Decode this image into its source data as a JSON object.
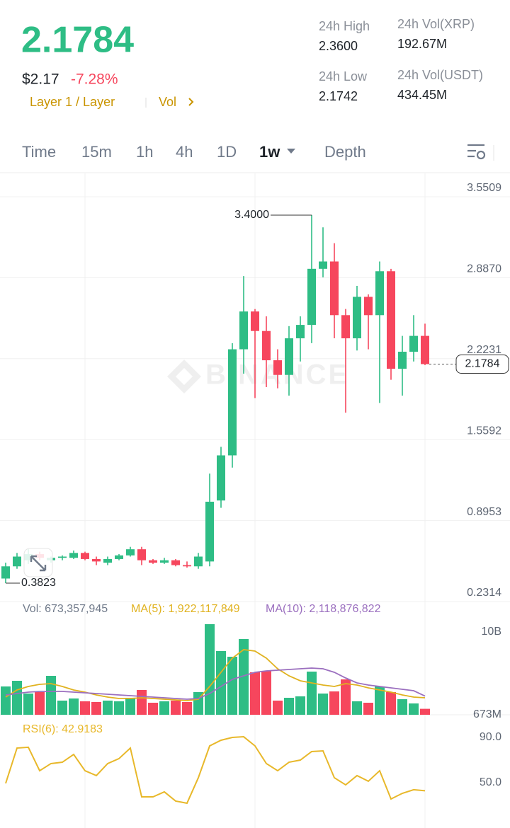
{
  "header": {
    "price": "2.1784",
    "fiat": "$2.17",
    "change": "-7.28%",
    "tags": [
      "Layer 1 / Layer",
      "Vol"
    ],
    "stats": [
      {
        "label": "24h High",
        "value": "2.3600"
      },
      {
        "label": "24h Vol(XRP)",
        "value": "192.67M"
      },
      {
        "label": "24h Low",
        "value": "2.1742"
      },
      {
        "label": "24h Vol(USDT)",
        "value": "434.45M"
      }
    ]
  },
  "tabs": {
    "items": [
      "Time",
      "15m",
      "1h",
      "4h",
      "1D",
      "1w",
      "Depth"
    ],
    "active": 5
  },
  "watermark": "BINANCE",
  "chart_data": [
    {
      "type": "candlestick",
      "up_color": "#2ebd85",
      "down_color": "#f6465d",
      "open": [
        0.42,
        0.52,
        0.57,
        0.62,
        0.57,
        0.59,
        0.59,
        0.63,
        0.58,
        0.55,
        0.58,
        0.61,
        0.66,
        0.57,
        0.55,
        0.57,
        0.53,
        0.52,
        0.56,
        1.06,
        1.43,
        2.3,
        2.61,
        2.45,
        2.21,
        2.09,
        2.39,
        2.5,
        2.96,
        3.02,
        2.58,
        2.39,
        2.73,
        2.58,
        2.94,
        2.14,
        2.28,
        2.41
      ],
      "high": [
        0.55,
        0.63,
        0.66,
        0.64,
        0.6,
        0.61,
        0.65,
        0.64,
        0.6,
        0.6,
        0.62,
        0.68,
        0.68,
        0.58,
        0.59,
        0.58,
        0.56,
        0.63,
        1.28,
        1.5,
        2.35,
        2.9,
        2.63,
        2.57,
        2.3,
        2.49,
        2.57,
        3.4,
        3.3,
        3.17,
        2.63,
        2.82,
        2.75,
        3.02,
        2.96,
        2.41,
        2.58,
        2.51
      ],
      "low": [
        0.3823,
        0.5,
        0.54,
        0.57,
        0.55,
        0.57,
        0.58,
        0.57,
        0.53,
        0.53,
        0.57,
        0.6,
        0.53,
        0.54,
        0.54,
        0.52,
        0.51,
        0.5,
        0.52,
        1.0,
        1.33,
        2.1,
        1.9,
        1.99,
        1.98,
        1.92,
        2.2,
        2.35,
        2.89,
        2.39,
        1.78,
        2.29,
        2.3,
        1.86,
        2.05,
        1.92,
        2.2,
        2.17
      ],
      "close": [
        0.52,
        0.6,
        0.62,
        0.59,
        0.59,
        0.6,
        0.63,
        0.58,
        0.56,
        0.58,
        0.61,
        0.66,
        0.57,
        0.55,
        0.57,
        0.53,
        0.52,
        0.6,
        1.05,
        1.43,
        2.3,
        2.61,
        2.45,
        2.21,
        2.09,
        2.39,
        2.5,
        2.96,
        3.02,
        2.58,
        2.39,
        2.73,
        2.58,
        2.94,
        2.14,
        2.28,
        2.41,
        2.1784
      ],
      "ylim": [
        0.2314,
        3.7134
      ],
      "yticks": [
        0.2314,
        0.8953,
        1.5592,
        2.2231,
        {
          "value": 2.887,
          "label": "2.8870"
        },
        3.5509
      ],
      "annotations": [
        {
          "value": 3.4,
          "label": "3.4000"
        },
        {
          "value": 0.3823,
          "label": "0.3823"
        }
      ],
      "last_price": 2.1784
    },
    {
      "type": "bar",
      "legend": [
        "Vol: 673,357,945",
        "MA(5): 1,922,117,849",
        "MA(10): 2,118,876,822"
      ],
      "values": [
        3200000000,
        3840000000,
        2400000000,
        2560000000,
        4400000000,
        1600000000,
        1840000000,
        1520000000,
        1440000000,
        1600000000,
        1520000000,
        1920000000,
        2800000000,
        1360000000,
        1520000000,
        1600000000,
        1440000000,
        2560000000,
        10240000000,
        7200000000,
        6560000000,
        8560000000,
        4800000000,
        4960000000,
        1600000000,
        1920000000,
        2080000000,
        4880000000,
        2400000000,
        2640000000,
        4000000000,
        1520000000,
        1360000000,
        3200000000,
        2560000000,
        1760000000,
        1280000000,
        673357945
      ],
      "series": [
        {
          "color": "#e0b21f",
          "values": [
            2000000000,
            2800000000,
            3200000000,
            3440000000,
            3520000000,
            3200000000,
            2800000000,
            2560000000,
            2240000000,
            2000000000,
            1840000000,
            1840000000,
            1920000000,
            1840000000,
            1760000000,
            1680000000,
            1600000000,
            1760000000,
            3200000000,
            4800000000,
            6400000000,
            7360000000,
            7200000000,
            6400000000,
            5200000000,
            4400000000,
            3840000000,
            3600000000,
            3360000000,
            3200000000,
            3520000000,
            3360000000,
            3040000000,
            2800000000,
            2560000000,
            2240000000,
            2000000000,
            1922117849
          ]
        },
        {
          "color": "#9b6fbf",
          "values": [
            2240000000,
            2400000000,
            2560000000,
            2640000000,
            2640000000,
            2640000000,
            2560000000,
            2480000000,
            2400000000,
            2320000000,
            2240000000,
            2160000000,
            2080000000,
            2000000000,
            1920000000,
            1840000000,
            1760000000,
            1840000000,
            2400000000,
            3200000000,
            4000000000,
            4400000000,
            4800000000,
            4960000000,
            5040000000,
            5120000000,
            5200000000,
            5280000000,
            5200000000,
            4800000000,
            4160000000,
            3600000000,
            3360000000,
            3200000000,
            3040000000,
            2880000000,
            2720000000,
            2118876822
          ]
        }
      ],
      "ylim": [
        0,
        10240000000
      ],
      "yticks": [
        {
          "value": 10000000000,
          "label": "10B"
        },
        {
          "value": 673357945,
          "label": "673M"
        }
      ]
    },
    {
      "type": "line",
      "label": "RSI(6): 42.9183",
      "color": "#e8b82a",
      "values": [
        49.4,
        80.6,
        81.3,
        60.6,
        66.9,
        68.1,
        75,
        60.6,
        56.3,
        66.9,
        71.3,
        80.6,
        37.5,
        37.5,
        41.9,
        33.8,
        31.9,
        54.4,
        82.5,
        87.5,
        90,
        90.6,
        82.5,
        66.9,
        60.6,
        68.1,
        70,
        77.5,
        78.1,
        54.4,
        48.1,
        56.3,
        51.3,
        60.6,
        35.6,
        40.6,
        43.8,
        42.9183
      ],
      "ylim": [
        10,
        110
      ],
      "yticks": [
        {
          "value": 90,
          "label": "90.0"
        },
        {
          "value": 50,
          "label": "50.0"
        }
      ]
    }
  ]
}
